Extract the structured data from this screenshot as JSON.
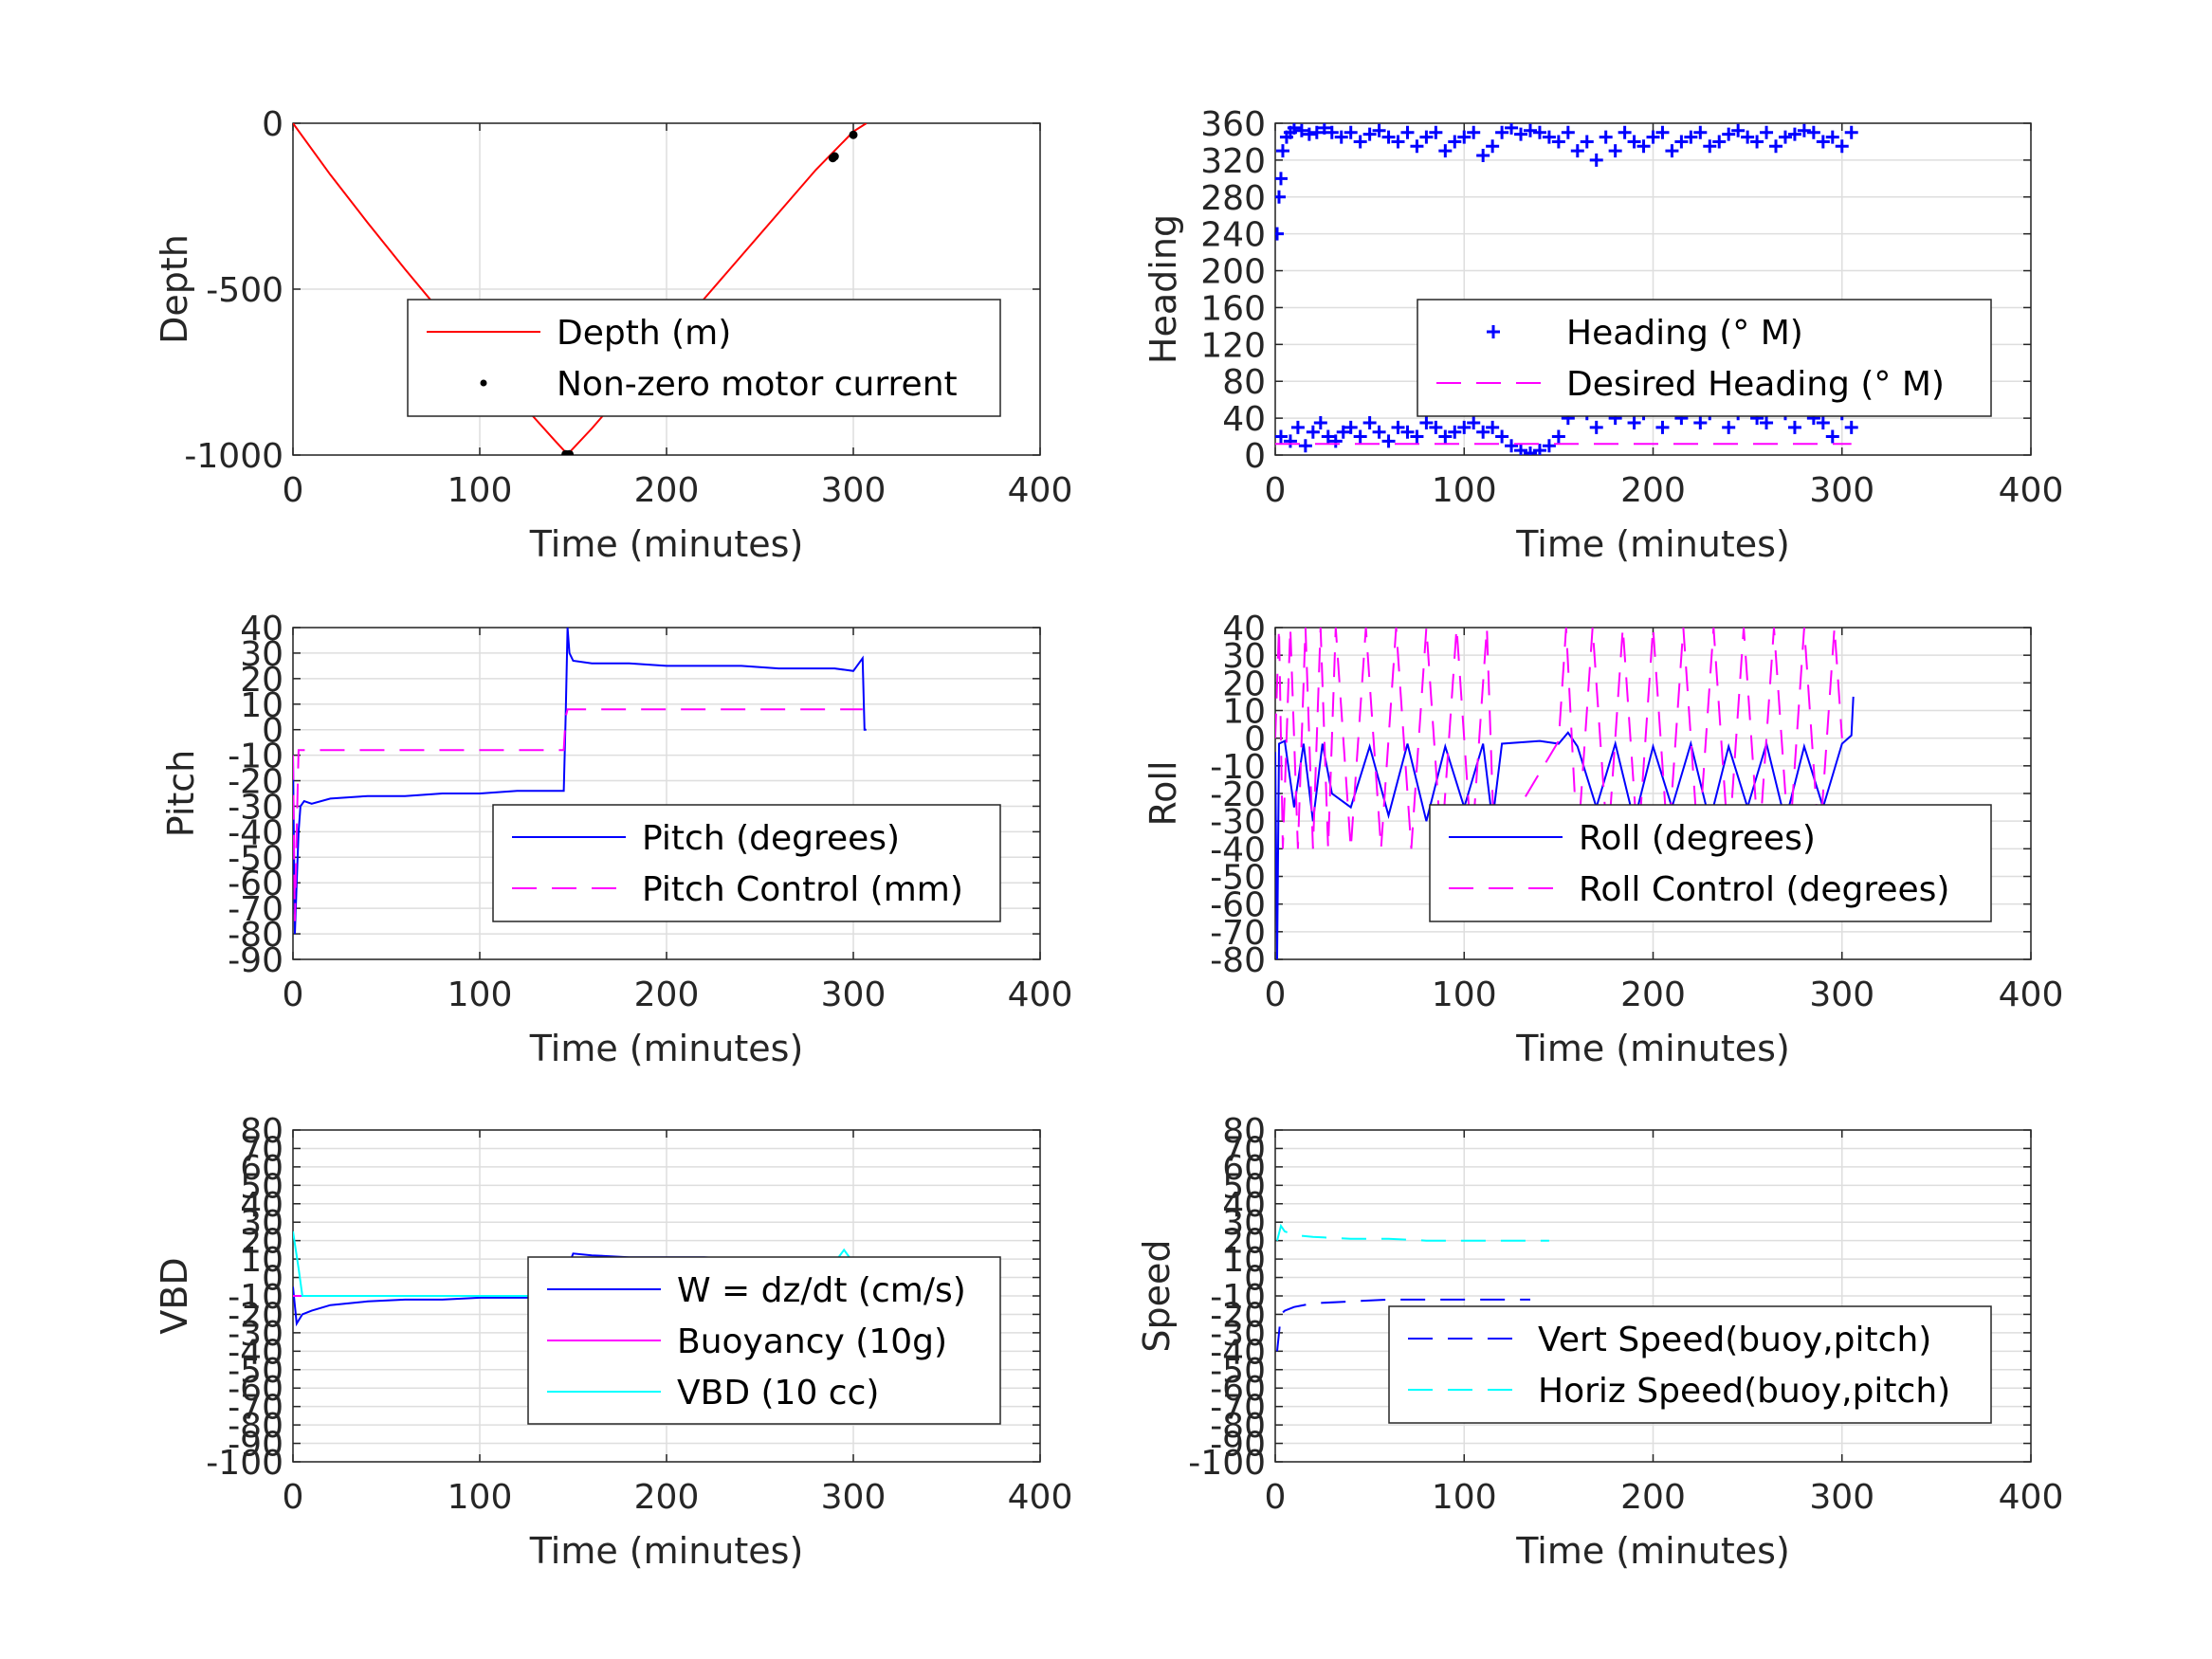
{
  "figure": {
    "background": "#ffffff"
  },
  "chart_data": [
    {
      "id": "depth",
      "type": "line",
      "xlabel": "Time (minutes)",
      "ylabel": "Depth",
      "xlim": [
        0,
        400
      ],
      "ylim": [
        -1000,
        0
      ],
      "xticks": [
        0,
        100,
        200,
        300,
        400
      ],
      "yticks": [
        0,
        -500,
        -1000
      ],
      "grid": true,
      "legend_position": "center-right",
      "series": [
        {
          "name": "Depth (m)",
          "color": "#ff0000",
          "style": "solid",
          "marker": "none",
          "x": [
            0,
            20,
            40,
            60,
            80,
            100,
            120,
            140,
            147,
            160,
            180,
            200,
            220,
            240,
            260,
            280,
            300,
            307
          ],
          "y": [
            0,
            -155,
            -300,
            -440,
            -575,
            -705,
            -830,
            -955,
            -998,
            -920,
            -790,
            -660,
            -530,
            -400,
            -270,
            -140,
            -25,
            0
          ]
        },
        {
          "name": "Non-zero motor current",
          "color": "#000000",
          "style": "none",
          "marker": "dot",
          "x": [
            146,
            147,
            148,
            289,
            290,
            300
          ],
          "y": [
            -998,
            -999,
            -998,
            -105,
            -100,
            -35
          ]
        }
      ]
    },
    {
      "id": "heading",
      "type": "scatter",
      "xlabel": "Time (minutes)",
      "ylabel": "Heading",
      "xlim": [
        0,
        400
      ],
      "ylim": [
        0,
        360
      ],
      "xticks": [
        0,
        100,
        200,
        300,
        400
      ],
      "yticks": [
        0,
        40,
        80,
        120,
        160,
        200,
        240,
        280,
        320,
        360
      ],
      "grid": true,
      "legend_position": "center-right",
      "series": [
        {
          "name": "Heading (° M)",
          "color": "#0000ff",
          "style": "none",
          "marker": "plus",
          "x": [
            1,
            2,
            3,
            4,
            6,
            8,
            10,
            14,
            18,
            22,
            26,
            30,
            35,
            40,
            45,
            50,
            55,
            60,
            65,
            70,
            75,
            80,
            85,
            90,
            95,
            100,
            105,
            110,
            115,
            120,
            125,
            130,
            135,
            140,
            145,
            150,
            155,
            160,
            165,
            170,
            175,
            180,
            185,
            190,
            195,
            200,
            205,
            210,
            215,
            220,
            225,
            230,
            235,
            240,
            245,
            250,
            255,
            260,
            265,
            270,
            275,
            280,
            285,
            290,
            295,
            300,
            305,
            3,
            8,
            12,
            16,
            20,
            24,
            28,
            32,
            36,
            40,
            45,
            50,
            55,
            60,
            65,
            70,
            75,
            80,
            85,
            90,
            95,
            100,
            105,
            110,
            115,
            120,
            125,
            130,
            135,
            140,
            145,
            150,
            155,
            160,
            165,
            170,
            175,
            180,
            185,
            190,
            195,
            200,
            205,
            210,
            215,
            220,
            225,
            230,
            235,
            240,
            245,
            250,
            255,
            260,
            265,
            270,
            275,
            280,
            285,
            290,
            295,
            300,
            305
          ],
          "y": [
            240,
            280,
            300,
            330,
            345,
            350,
            355,
            352,
            348,
            350,
            355,
            350,
            345,
            350,
            340,
            348,
            352,
            345,
            340,
            350,
            335,
            345,
            350,
            330,
            340,
            345,
            350,
            325,
            335,
            350,
            355,
            348,
            352,
            350,
            345,
            340,
            350,
            330,
            340,
            320,
            345,
            330,
            350,
            340,
            335,
            345,
            350,
            330,
            340,
            345,
            350,
            335,
            340,
            348,
            352,
            345,
            340,
            350,
            335,
            345,
            348,
            352,
            350,
            340,
            345,
            335,
            350,
            20,
            15,
            30,
            10,
            25,
            35,
            20,
            15,
            25,
            30,
            20,
            35,
            25,
            15,
            30,
            25,
            20,
            35,
            30,
            20,
            25,
            30,
            35,
            25,
            30,
            20,
            10,
            5,
            2,
            5,
            10,
            20,
            40,
            55,
            45,
            30,
            50,
            40,
            55,
            35,
            45,
            60,
            30,
            50,
            40,
            55,
            35,
            45,
            50,
            30,
            45,
            55,
            40,
            35,
            50,
            45,
            30,
            55,
            40,
            35,
            20,
            45,
            30
          ]
        },
        {
          "name": "Desired Heading (° M)",
          "color": "#ff00ff",
          "style": "dashed",
          "marker": "none",
          "x": [
            0,
            20,
            40,
            60,
            80,
            100,
            120,
            140,
            160,
            180,
            200,
            220,
            240,
            260,
            280,
            300,
            305
          ],
          "y": [
            12,
            12,
            12,
            12,
            12,
            12,
            12,
            12,
            12,
            12,
            12,
            12,
            12,
            12,
            12,
            12,
            12
          ]
        }
      ]
    },
    {
      "id": "pitch",
      "type": "line",
      "xlabel": "Time (minutes)",
      "ylabel": "Pitch",
      "xlim": [
        0,
        400
      ],
      "ylim": [
        -90,
        40
      ],
      "xticks": [
        0,
        100,
        200,
        300,
        400
      ],
      "yticks": [
        40,
        30,
        20,
        10,
        0,
        -10,
        -20,
        -30,
        -40,
        -50,
        -60,
        -70,
        -80,
        -90
      ],
      "grid": true,
      "legend_position": "bottom-right",
      "series": [
        {
          "name": "Pitch (degrees)",
          "color": "#0000ff",
          "style": "solid",
          "marker": "none",
          "x": [
            0,
            1,
            2,
            3,
            4,
            6,
            10,
            20,
            40,
            60,
            80,
            100,
            120,
            140,
            145,
            146,
            147,
            148,
            150,
            160,
            180,
            200,
            220,
            240,
            260,
            280,
            290,
            300,
            305,
            306,
            307
          ],
          "y": [
            -10,
            -80,
            -60,
            -40,
            -30,
            -28,
            -29,
            -27,
            -26,
            -26,
            -25,
            -25,
            -24,
            -24,
            -24,
            5,
            40,
            30,
            27,
            26,
            26,
            25,
            25,
            25,
            24,
            24,
            24,
            23,
            28,
            0,
            0
          ]
        },
        {
          "name": "Pitch Control (mm)",
          "color": "#ff00ff",
          "style": "dashed",
          "marker": "none",
          "x": [
            0,
            1,
            2,
            3,
            5,
            20,
            40,
            60,
            80,
            100,
            120,
            145,
            146,
            147,
            160,
            180,
            200,
            220,
            240,
            260,
            280,
            300,
            305
          ],
          "y": [
            -10,
            -75,
            -40,
            -8,
            -8,
            -8,
            -8,
            -8,
            -8,
            -8,
            -8,
            -8,
            5,
            8,
            8,
            8,
            8,
            8,
            8,
            8,
            8,
            8,
            8
          ]
        }
      ]
    },
    {
      "id": "roll",
      "type": "line",
      "xlabel": "Time (minutes)",
      "ylabel": "Roll",
      "xlim": [
        0,
        400
      ],
      "ylim": [
        -80,
        40
      ],
      "xticks": [
        0,
        100,
        200,
        300,
        400
      ],
      "yticks": [
        40,
        30,
        20,
        10,
        0,
        -10,
        -20,
        -30,
        -40,
        -50,
        -60,
        -70,
        -80
      ],
      "grid": true,
      "legend_position": "bottom-right",
      "series": [
        {
          "name": "Roll (degrees)",
          "color": "#0000ff",
          "style": "solid",
          "marker": "none",
          "x": [
            0,
            1,
            2,
            5,
            10,
            15,
            20,
            25,
            30,
            40,
            50,
            60,
            70,
            80,
            90,
            100,
            110,
            115,
            120,
            140,
            150,
            155,
            160,
            170,
            180,
            190,
            200,
            210,
            220,
            230,
            240,
            250,
            260,
            270,
            280,
            290,
            300,
            305,
            306
          ],
          "y": [
            -5,
            -80,
            -2,
            -1,
            -25,
            -2,
            -30,
            -2,
            -20,
            -25,
            -3,
            -28,
            -2,
            -30,
            -3,
            -25,
            -2,
            -30,
            -2,
            -1,
            -2,
            2,
            -3,
            -25,
            -2,
            -30,
            -3,
            -25,
            -2,
            -30,
            -3,
            -25,
            -2,
            -30,
            -3,
            -25,
            -2,
            1,
            15
          ]
        },
        {
          "name": "Roll Control (degrees)",
          "color": "#ff00ff",
          "style": "dashed",
          "marker": "none",
          "x": [
            0,
            2,
            4,
            8,
            12,
            16,
            20,
            24,
            28,
            32,
            40,
            48,
            56,
            64,
            72,
            80,
            88,
            96,
            104,
            112,
            116,
            150,
            154,
            160,
            168,
            176,
            184,
            192,
            200,
            208,
            216,
            224,
            232,
            240,
            248,
            256,
            264,
            272,
            280,
            288,
            296,
            300
          ],
          "y": [
            0,
            40,
            -40,
            40,
            -40,
            40,
            -40,
            40,
            -40,
            40,
            -40,
            40,
            -40,
            40,
            -40,
            40,
            -40,
            40,
            -40,
            40,
            -40,
            -1,
            40,
            -40,
            40,
            -40,
            40,
            -40,
            40,
            -40,
            40,
            -40,
            40,
            -40,
            40,
            -40,
            40,
            -40,
            40,
            -40,
            40,
            0
          ]
        }
      ]
    },
    {
      "id": "vbd",
      "type": "line",
      "xlabel": "Time (minutes)",
      "ylabel": "VBD",
      "xlim": [
        0,
        400
      ],
      "ylim": [
        -100,
        80
      ],
      "xticks": [
        0,
        100,
        200,
        300,
        400
      ],
      "yticks": [
        80,
        70,
        60,
        50,
        40,
        30,
        20,
        10,
        0,
        -10,
        -20,
        -30,
        -40,
        -50,
        -60,
        -70,
        -80,
        -90,
        -100
      ],
      "grid": true,
      "legend_position": "center-right",
      "series": [
        {
          "name": "W = dz/dt (cm/s)",
          "color": "#0000ff",
          "style": "solid",
          "marker": "none",
          "x": [
            0,
            2,
            5,
            10,
            20,
            40,
            60,
            80,
            100,
            120,
            140,
            145,
            147,
            150,
            160,
            180,
            200,
            220,
            240,
            260,
            280,
            300,
            305,
            307
          ],
          "y": [
            -5,
            -25,
            -20,
            -18,
            -15,
            -13,
            -12,
            -12,
            -11,
            -11,
            -11,
            -11,
            5,
            13,
            12,
            11,
            11,
            11,
            10,
            10,
            10,
            10,
            10,
            0
          ]
        },
        {
          "name": "Buoyancy (10g)",
          "color": "#ff00ff",
          "style": "solid",
          "marker": "none",
          "x": [
            0,
            5,
            50,
            100,
            145,
            147,
            200,
            250,
            300,
            305
          ],
          "y": [
            -10,
            -10,
            -10,
            -10,
            -10,
            10,
            10,
            10,
            10,
            10
          ]
        },
        {
          "name": "VBD (10 cc)",
          "color": "#00ffff",
          "style": "solid",
          "marker": "none",
          "x": [
            0,
            3,
            5,
            50,
            100,
            145,
            147,
            200,
            250,
            290,
            295,
            300,
            305
          ],
          "y": [
            25,
            5,
            -10,
            -10,
            -10,
            -10,
            8,
            8,
            8,
            8,
            15,
            8,
            8
          ]
        }
      ]
    },
    {
      "id": "speed",
      "type": "line",
      "xlabel": "Time (minutes)",
      "ylabel": "Speed",
      "xlim": [
        0,
        400
      ],
      "ylim": [
        -100,
        80
      ],
      "xticks": [
        0,
        100,
        200,
        300,
        400
      ],
      "yticks": [
        80,
        70,
        60,
        50,
        40,
        30,
        20,
        10,
        0,
        -10,
        -20,
        -30,
        -40,
        -50,
        -60,
        -70,
        -80,
        -90,
        -100
      ],
      "grid": true,
      "legend_position": "bottom-right",
      "series": [
        {
          "name": "Vert Speed(buoy,pitch)",
          "color": "#0000ff",
          "style": "dashed",
          "marker": "none",
          "x": [
            1,
            3,
            5,
            10,
            20,
            40,
            60,
            80,
            100,
            120,
            135
          ],
          "y": [
            -40,
            -20,
            -18,
            -16,
            -14,
            -13,
            -12,
            -12,
            -12,
            -12,
            -12
          ]
        },
        {
          "name": "Horiz Speed(buoy,pitch)",
          "color": "#00ffff",
          "style": "dashed",
          "marker": "none",
          "x": [
            1,
            3,
            5,
            10,
            20,
            40,
            60,
            80,
            100,
            120,
            145
          ],
          "y": [
            20,
            28,
            25,
            23,
            22,
            21,
            21,
            20,
            20,
            20,
            20
          ]
        }
      ]
    }
  ]
}
